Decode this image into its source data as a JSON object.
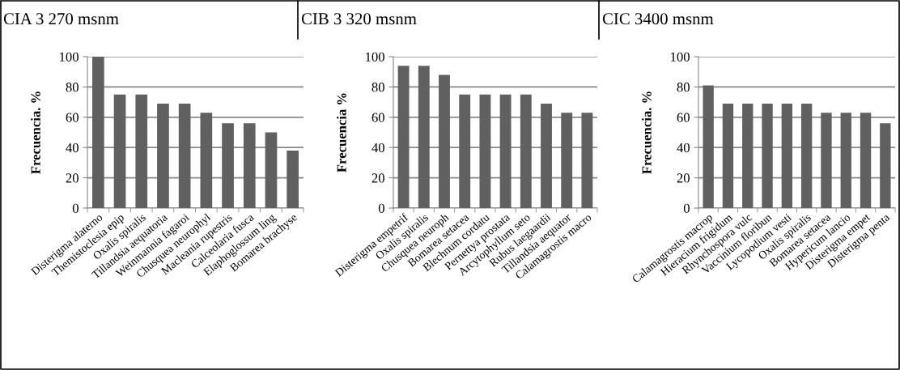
{
  "chart_data": [
    {
      "type": "bar",
      "title": "CIA 3 270 msnm",
      "ylabel": "Frecuencia. %",
      "categories": [
        "Disterigma alaterno",
        "Themistoclesia epip",
        "Oxalis spiralis",
        "Tillandsia aequatoria",
        "Weinmannia fagaroi",
        "Chusquea neurophyl",
        "Macleania rupestris",
        "Calceolaria fusca",
        "Elaphoglossum ling",
        "Bomarea brachyse"
      ],
      "values": [
        100,
        75,
        75,
        69,
        69,
        63,
        56,
        56,
        50,
        38
      ],
      "color": "#606060",
      "ylim": [
        0,
        100
      ],
      "yticks": [
        0,
        20,
        40,
        60,
        80,
        100
      ],
      "grid": "y"
    },
    {
      "type": "bar",
      "title": "CIB 3 320 msnm",
      "ylabel": "Frecuencia %",
      "categories": [
        "Disterigma empetrif",
        "Oxalis spiralis",
        "Chusquea neuroph",
        "Bomarea setacea",
        "Blechnum cordatu",
        "Pernettya prostata",
        "Arcytophyllum seto",
        "Rubus laegaardii",
        "Tillandsia aequator",
        "Calamagrostis macro"
      ],
      "values": [
        94,
        94,
        88,
        75,
        75,
        75,
        75,
        69,
        63,
        63
      ],
      "color": "#606060",
      "ylim": [
        0,
        100
      ],
      "yticks": [
        0,
        20,
        40,
        60,
        80,
        100
      ],
      "grid": "y"
    },
    {
      "type": "bar",
      "title": "CIC 3400 msnm",
      "ylabel": "Frecuencia. %",
      "categories": [
        "Calamagrostis macrop",
        "Hieracium frigidum",
        "Rhynchospora vulc",
        "Vaccinium floribun",
        "Lycopodium vesti",
        "Oxalis spiralis",
        "Bomarea setacea",
        "Hypericum lancio",
        "Disterigma empet",
        "Disterigma penta"
      ],
      "values": [
        81,
        69,
        69,
        69,
        69,
        69,
        63,
        63,
        63,
        56
      ],
      "color": "#606060",
      "ylim": [
        0,
        100
      ],
      "yticks": [
        0,
        20,
        40,
        60,
        80,
        100
      ],
      "grid": "y"
    }
  ]
}
